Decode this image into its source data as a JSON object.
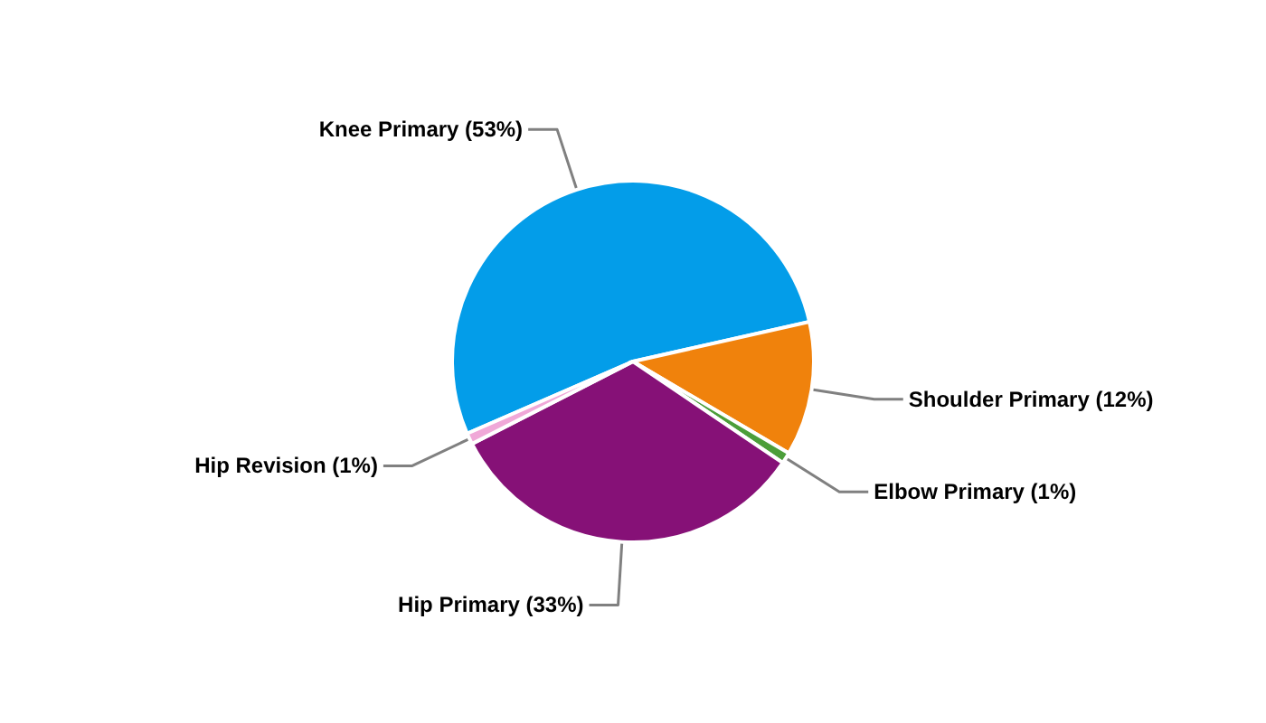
{
  "chart_data": {
    "type": "pie",
    "categories": [
      "Knee Primary",
      "Shoulder Primary",
      "Elbow Primary",
      "Hip Primary",
      "Hip Revision"
    ],
    "values": [
      53,
      12,
      1,
      33,
      1
    ],
    "value_labels": [
      "(53%)",
      "(12%)",
      "(1%)",
      "(33%)",
      "(1%)"
    ],
    "colors": [
      "#039de9",
      "#f0820c",
      "#4c9e3a",
      "#861177",
      "#f0a8d8"
    ]
  }
}
